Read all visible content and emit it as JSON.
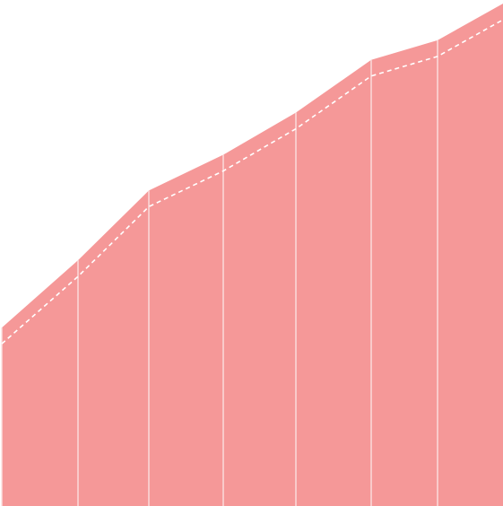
{
  "chart_data": {
    "type": "area",
    "x": [
      0,
      1,
      2,
      3,
      4,
      5,
      6,
      7
    ],
    "series": [
      {
        "values": [
          35.5,
          48.9,
          62.8,
          69.9,
          78.3,
          88.8,
          92.7,
          100.0
        ]
      }
    ],
    "xlim": [
      0,
      7
    ],
    "ylim": [
      0,
      100
    ],
    "grid": "vertical",
    "legend": "none",
    "colors": {
      "fill": "#f59898",
      "gridline": "#fbe0e0",
      "trend_line": "#ffffff",
      "background": "#ffffff"
    }
  }
}
